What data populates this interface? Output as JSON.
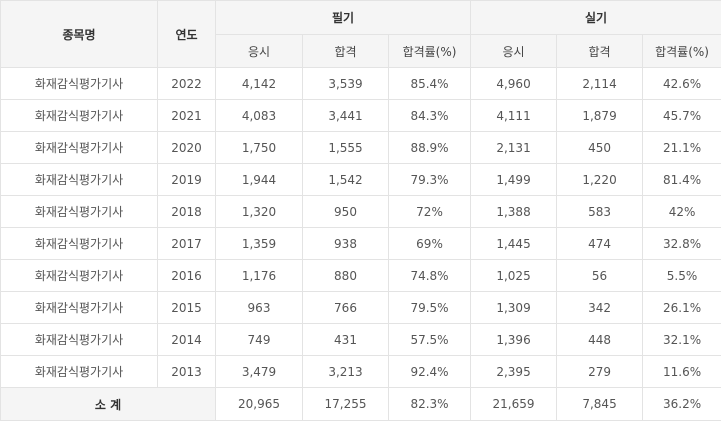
{
  "header": {
    "subject": "종목명",
    "year": "연도",
    "written": "필기",
    "practical": "실기",
    "sub": {
      "applicants": "응시",
      "passed": "합격",
      "pass_rate": "합격률(%)"
    }
  },
  "rows": [
    {
      "name": "화재감식평가기사",
      "year": "2022",
      "w_app": "4,142",
      "w_pass": "3,539",
      "w_rate": "85.4%",
      "p_app": "4,960",
      "p_pass": "2,114",
      "p_rate": "42.6%"
    },
    {
      "name": "화재감식평가기사",
      "year": "2021",
      "w_app": "4,083",
      "w_pass": "3,441",
      "w_rate": "84.3%",
      "p_app": "4,111",
      "p_pass": "1,879",
      "p_rate": "45.7%"
    },
    {
      "name": "화재감식평가기사",
      "year": "2020",
      "w_app": "1,750",
      "w_pass": "1,555",
      "w_rate": "88.9%",
      "p_app": "2,131",
      "p_pass": "450",
      "p_rate": "21.1%"
    },
    {
      "name": "화재감식평가기사",
      "year": "2019",
      "w_app": "1,944",
      "w_pass": "1,542",
      "w_rate": "79.3%",
      "p_app": "1,499",
      "p_pass": "1,220",
      "p_rate": "81.4%"
    },
    {
      "name": "화재감식평가기사",
      "year": "2018",
      "w_app": "1,320",
      "w_pass": "950",
      "w_rate": "72%",
      "p_app": "1,388",
      "p_pass": "583",
      "p_rate": "42%"
    },
    {
      "name": "화재감식평가기사",
      "year": "2017",
      "w_app": "1,359",
      "w_pass": "938",
      "w_rate": "69%",
      "p_app": "1,445",
      "p_pass": "474",
      "p_rate": "32.8%"
    },
    {
      "name": "화재감식평가기사",
      "year": "2016",
      "w_app": "1,176",
      "w_pass": "880",
      "w_rate": "74.8%",
      "p_app": "1,025",
      "p_pass": "56",
      "p_rate": "5.5%"
    },
    {
      "name": "화재감식평가기사",
      "year": "2015",
      "w_app": "963",
      "w_pass": "766",
      "w_rate": "79.5%",
      "p_app": "1,309",
      "p_pass": "342",
      "p_rate": "26.1%"
    },
    {
      "name": "화재감식평가기사",
      "year": "2014",
      "w_app": "749",
      "w_pass": "431",
      "w_rate": "57.5%",
      "p_app": "1,396",
      "p_pass": "448",
      "p_rate": "32.1%"
    },
    {
      "name": "화재감식평가기사",
      "year": "2013",
      "w_app": "3,479",
      "w_pass": "3,213",
      "w_rate": "92.4%",
      "p_app": "2,395",
      "p_pass": "279",
      "p_rate": "11.6%"
    }
  ],
  "total": {
    "label": "소 계",
    "w_app": "20,965",
    "w_pass": "17,255",
    "w_rate": "82.3%",
    "p_app": "21,659",
    "p_pass": "7,845",
    "p_rate": "36.2%"
  }
}
